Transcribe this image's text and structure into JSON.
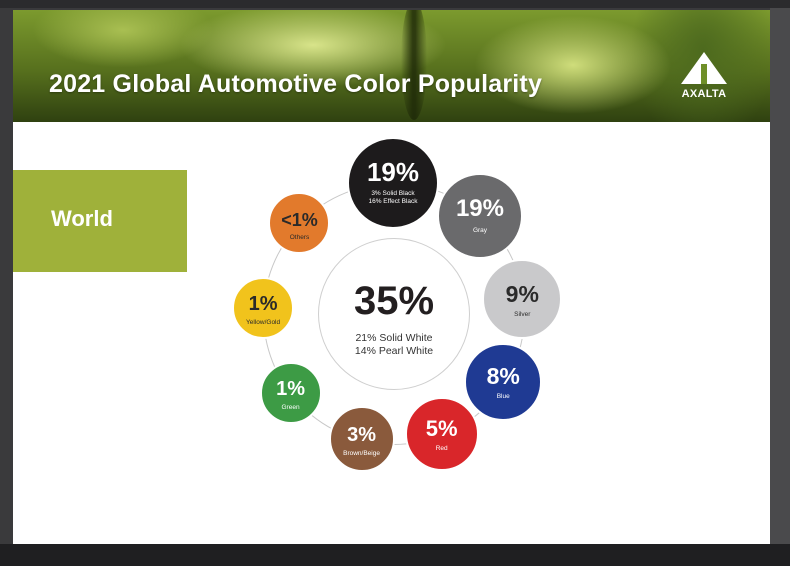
{
  "slide": {
    "title": "2021 Global Automotive Color Popularity",
    "logo_text": "AXALTA",
    "region": "World"
  },
  "colors": {
    "region_bar": "#9fb13a",
    "banner": "#6f8f28"
  },
  "chart_data": {
    "type": "bubble-ring",
    "title": "2021 Global Automotive Color Popularity",
    "center": {
      "value_label": "35%",
      "value": 35,
      "name": "White",
      "notes": [
        "21% Solid White",
        "14% Pearl White"
      ]
    },
    "slices": [
      {
        "value_label": "19%",
        "value": 19,
        "name": "",
        "notes": [
          "3% Solid Black",
          "16% Effect Black"
        ],
        "color": "#1d1b1c",
        "text_color": "#ffffff"
      },
      {
        "value_label": "19%",
        "value": 19,
        "name": "Gray",
        "notes": [],
        "color": "#6a6a6c",
        "text_color": "#ffffff"
      },
      {
        "value_label": "9%",
        "value": 9,
        "name": "Silver",
        "notes": [],
        "color": "#c9c9cb",
        "text_color": "#2a2a2a"
      },
      {
        "value_label": "8%",
        "value": 8,
        "name": "Blue",
        "notes": [],
        "color": "#1f3a93",
        "text_color": "#ffffff"
      },
      {
        "value_label": "5%",
        "value": 5,
        "name": "Red",
        "notes": [],
        "color": "#d9262a",
        "text_color": "#ffffff"
      },
      {
        "value_label": "3%",
        "value": 3,
        "name": "Brown/Beige",
        "notes": [],
        "color": "#8a5a3c",
        "text_color": "#ffffff"
      },
      {
        "value_label": "1%",
        "value": 1,
        "name": "Green",
        "notes": [],
        "color": "#3d9b45",
        "text_color": "#ffffff"
      },
      {
        "value_label": "1%",
        "value": 1,
        "name": "Yellow/Gold",
        "notes": [],
        "color": "#f1c31c",
        "text_color": "#2a2a2a"
      },
      {
        "value_label": "<1%",
        "value": 0.5,
        "name": "Others",
        "notes": [],
        "color": "#e27a2c",
        "text_color": "#2a2a2a"
      }
    ]
  }
}
